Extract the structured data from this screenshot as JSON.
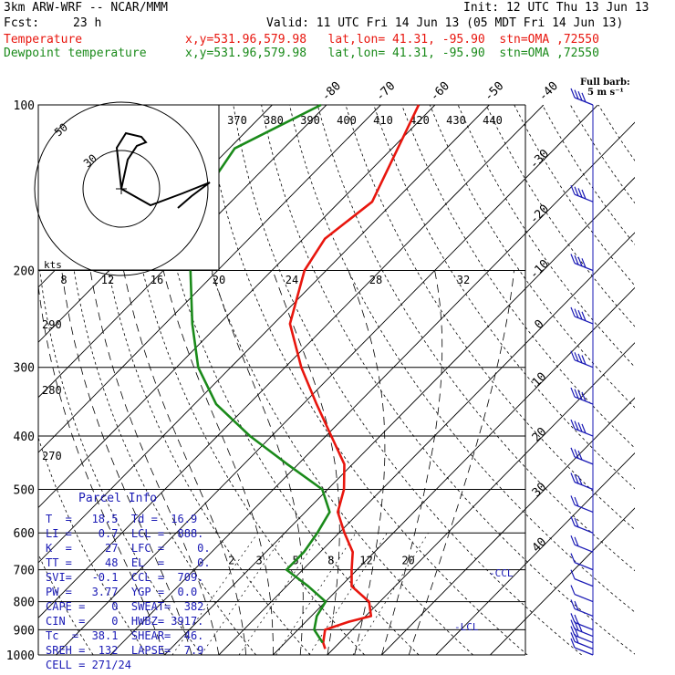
{
  "header": {
    "model": "3km ARW-WRF -- NCAR/MMM",
    "init": "Init: 12 UTC Thu 13 Jun 13",
    "fcst_label": "Fcst:",
    "fcst_value": "23 h",
    "valid": "Valid: 11 UTC Fri 14 Jun 13 (05 MDT Fri 14 Jun 13)",
    "temp_label": "Temperature",
    "temp_loc": "x,y=531.96,579.98   lat,lon= 41.31, -95.90  stn=OMA ,72550",
    "dew_label": "Dewpoint temperature",
    "dew_loc": "x,y=531.96,579.98   lat,lon= 41.31, -95.90  stn=OMA ,72550"
  },
  "colors": {
    "temperature": "#e8160e",
    "dewpoint": "#1a8a1a",
    "info": "#1a1ab5",
    "grid": "#000000"
  },
  "wind_legend": {
    "title": "Full barb:",
    "value": "5 m s⁻¹"
  },
  "parcel_info": {
    "title": "Parcel Info",
    "rows": [
      "T  =   18.5  Td =  16.9",
      "LI =    0.7  LCL =  888.",
      "K  =     27  LFC =     0.",
      "TT =     48  EL  =     0.",
      "SVI=   -0.1  CCL =  709.",
      "PW =   3.77  YGP =  0.0",
      "CAPE =    0  SWEAT=  382",
      "CIN  =    0  HWBZ= 3917.",
      "Tc  =  38.1  SHEAR=  46.",
      "SREH =  132  LAPSE=  7.9",
      "CELL = 271/24"
    ]
  },
  "annotations": {
    "ccl": "-CCL",
    "lcl": "-LCL"
  },
  "chart_data": {
    "type": "line",
    "title": "",
    "ylabel": "",
    "pressure_ticks": [
      100,
      200,
      300,
      400,
      500,
      600,
      700,
      800,
      900,
      1000
    ],
    "isotherm_labels": [
      -80,
      -70,
      -60,
      -50,
      -40,
      -30,
      -20,
      -10,
      0,
      10,
      20,
      30,
      40
    ],
    "theta_labels": [
      370,
      380,
      390,
      400,
      410,
      420,
      430,
      440
    ],
    "theta_side_labels": [
      290,
      280,
      270
    ],
    "mixing_ratio_labels": [
      2,
      3,
      5,
      8,
      12,
      20
    ],
    "hodograph": {
      "unit": "kts",
      "ring_labels": [
        8,
        12,
        16,
        20,
        24,
        28,
        32
      ],
      "circle_labels": [
        50,
        30
      ]
    },
    "series": [
      {
        "name": "Temperature",
        "points": [
          {
            "p": 100,
            "t": -63
          },
          {
            "p": 150,
            "t": -54
          },
          {
            "p": 175,
            "t": -56
          },
          {
            "p": 200,
            "t": -54
          },
          {
            "p": 250,
            "t": -47
          },
          {
            "p": 300,
            "t": -37
          },
          {
            "p": 350,
            "t": -27.5
          },
          {
            "p": 400,
            "t": -19
          },
          {
            "p": 450,
            "t": -11.5
          },
          {
            "p": 500,
            "t": -7
          },
          {
            "p": 550,
            "t": -4
          },
          {
            "p": 600,
            "t": 1
          },
          {
            "p": 650,
            "t": 6
          },
          {
            "p": 700,
            "t": 9
          },
          {
            "p": 750,
            "t": 12
          },
          {
            "p": 800,
            "t": 18
          },
          {
            "p": 850,
            "t": 21
          },
          {
            "p": 870,
            "t": 18
          },
          {
            "p": 900,
            "t": 15
          },
          {
            "p": 950,
            "t": 17
          },
          {
            "p": 975,
            "t": 18.5
          }
        ]
      },
      {
        "name": "Dewpoint temperature",
        "points": [
          {
            "p": 100,
            "t": -81
          },
          {
            "p": 120,
            "t": -89
          },
          {
            "p": 150,
            "t": -86
          },
          {
            "p": 175,
            "t": -80
          },
          {
            "p": 200,
            "t": -75
          },
          {
            "p": 250,
            "t": -65
          },
          {
            "p": 300,
            "t": -56
          },
          {
            "p": 350,
            "t": -46
          },
          {
            "p": 400,
            "t": -34
          },
          {
            "p": 450,
            "t": -22
          },
          {
            "p": 500,
            "t": -11
          },
          {
            "p": 550,
            "t": -5.5
          },
          {
            "p": 600,
            "t": -4
          },
          {
            "p": 650,
            "t": -3
          },
          {
            "p": 700,
            "t": -3
          },
          {
            "p": 750,
            "t": 4
          },
          {
            "p": 800,
            "t": 10
          },
          {
            "p": 850,
            "t": 11
          },
          {
            "p": 900,
            "t": 13
          },
          {
            "p": 950,
            "t": 16.9
          }
        ]
      }
    ],
    "wind_barbs": {
      "levels": [
        1000,
        975,
        950,
        925,
        900,
        850,
        800,
        750,
        700,
        650,
        600,
        550,
        500,
        450,
        400,
        350,
        300,
        250,
        200,
        150,
        100
      ],
      "speed_ms": [
        5,
        10,
        14,
        15,
        12,
        10,
        8,
        6,
        8,
        10,
        12,
        14,
        15,
        18,
        20,
        22,
        25,
        28,
        30,
        28,
        25
      ]
    }
  }
}
